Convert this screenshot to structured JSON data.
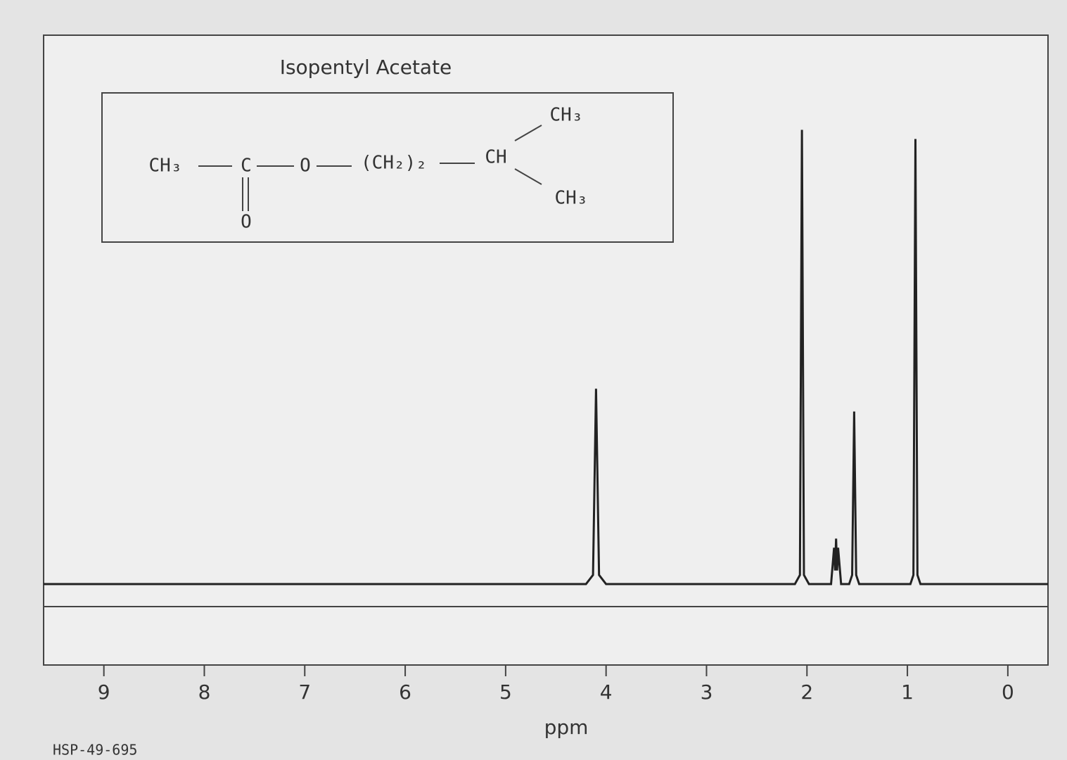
{
  "chart_data": {
    "type": "line",
    "title": "Isopentyl Acetate",
    "xlabel": "ppm",
    "footnote": "HSP-49-695",
    "annotations": [
      "CH₃",
      "C",
      "O",
      "(CH₂)₂",
      "CH",
      "CH₃",
      "CH₃",
      "O"
    ],
    "xlim": [
      9.6,
      -0.4
    ],
    "xticks": [
      9,
      8,
      7,
      6,
      5,
      4,
      3,
      2,
      1,
      0
    ],
    "ylim": [
      0,
      110
    ],
    "color": "#222222",
    "series": [
      {
        "name": "Isopentyl Acetate",
        "x": [
          9.6,
          4.2,
          4.13,
          4.1,
          4.07,
          4.0,
          2.12,
          2.07,
          2.05,
          2.03,
          1.98,
          1.76,
          1.73,
          1.72,
          1.71,
          1.7,
          1.69,
          1.66,
          1.58,
          1.55,
          1.53,
          1.51,
          1.48,
          0.97,
          0.94,
          0.92,
          0.9,
          0.87,
          -0.4
        ],
        "values": [
          0,
          0,
          2,
          43,
          2,
          0,
          0,
          2,
          100,
          2,
          0,
          0,
          8,
          3,
          10,
          3,
          8,
          0,
          0,
          2,
          38,
          2,
          0,
          0,
          2,
          98,
          2,
          0,
          0
        ]
      }
    ]
  }
}
